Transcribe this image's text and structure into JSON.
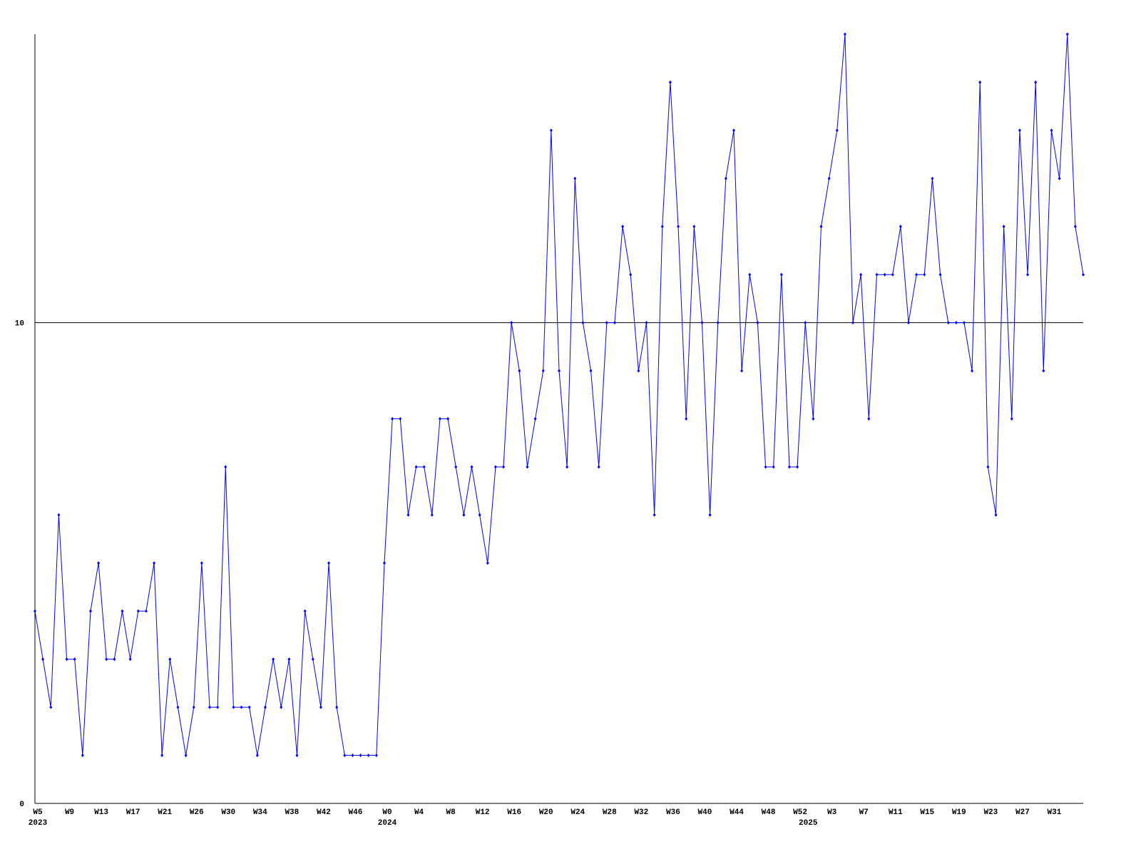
{
  "chart_data": {
    "type": "line",
    "categories": [
      "W5",
      null,
      null,
      null,
      "W9",
      null,
      null,
      null,
      "W13",
      null,
      null,
      null,
      "W17",
      null,
      null,
      null,
      "W21",
      null,
      null,
      null,
      "W26",
      null,
      null,
      null,
      "W30",
      null,
      null,
      null,
      "W34",
      null,
      null,
      null,
      "W38",
      null,
      null,
      null,
      "W42",
      null,
      null,
      null,
      "W46",
      null,
      null,
      null,
      "W0",
      null,
      null,
      null,
      "W4",
      null,
      null,
      null,
      "W8",
      null,
      null,
      null,
      "W12",
      null,
      null,
      null,
      "W16",
      null,
      null,
      null,
      "W20",
      null,
      null,
      null,
      "W24",
      null,
      null,
      null,
      "W28",
      null,
      null,
      null,
      "W32",
      null,
      null,
      null,
      "W36",
      null,
      null,
      null,
      "W40",
      null,
      null,
      null,
      "W44",
      null,
      null,
      null,
      "W48",
      null,
      null,
      null,
      "W52",
      null,
      null,
      null,
      "W3",
      null,
      null,
      null,
      "W7",
      null,
      null,
      null,
      "W11",
      null,
      null,
      null,
      "W15",
      null,
      null,
      null,
      "W19",
      null,
      null,
      null,
      "W23",
      null,
      null,
      null,
      "W27",
      null,
      null,
      null,
      "W31",
      null,
      null,
      null,
      null
    ],
    "years": [
      "2023",
      null,
      null,
      null,
      null,
      null,
      null,
      null,
      null,
      null,
      null,
      null,
      null,
      null,
      null,
      null,
      null,
      null,
      null,
      null,
      null,
      null,
      null,
      null,
      null,
      null,
      null,
      null,
      null,
      null,
      null,
      null,
      null,
      null,
      null,
      null,
      null,
      null,
      null,
      null,
      null,
      null,
      null,
      null,
      "2024",
      null,
      null,
      null,
      null,
      null,
      null,
      null,
      null,
      null,
      null,
      null,
      null,
      null,
      null,
      null,
      null,
      null,
      null,
      null,
      null,
      null,
      null,
      null,
      null,
      null,
      null,
      null,
      null,
      null,
      null,
      null,
      null,
      null,
      null,
      null,
      null,
      null,
      null,
      null,
      null,
      null,
      null,
      null,
      null,
      null,
      null,
      null,
      null,
      null,
      null,
      null,
      null,
      "2025",
      null,
      null,
      null,
      null,
      null,
      null,
      null,
      null,
      null,
      null,
      null,
      null,
      null,
      null,
      null,
      null,
      null,
      null,
      null,
      null,
      null,
      null,
      null,
      null,
      null,
      null,
      null,
      null,
      null,
      null,
      null,
      null,
      null,
      null,
      null
    ],
    "series": [
      {
        "color": "#0000ff",
        "values": [
          4,
          3,
          2,
          6,
          3,
          3,
          1,
          4,
          5,
          3,
          3,
          4,
          3,
          4,
          4,
          5,
          1,
          3,
          2,
          1,
          2,
          5,
          2,
          2,
          7,
          2,
          2,
          2,
          1,
          2,
          3,
          2,
          3,
          1,
          4,
          3,
          2,
          5,
          2,
          1,
          1,
          1,
          1,
          1,
          5,
          8,
          8,
          6,
          7,
          7,
          6,
          8,
          8,
          7,
          6,
          7,
          6,
          5,
          7,
          7,
          10,
          9,
          7,
          8,
          9,
          14,
          9,
          7,
          13,
          10,
          9,
          7,
          10,
          10,
          12,
          11,
          9,
          10,
          6,
          12,
          15,
          12,
          8,
          12,
          10,
          6,
          10,
          13,
          14,
          9,
          11,
          10,
          7,
          7,
          11,
          7,
          7,
          10,
          8,
          12,
          13,
          14,
          16,
          10,
          11,
          8,
          11,
          11,
          11,
          12,
          10,
          11,
          11,
          13,
          11,
          10,
          10,
          10,
          9,
          15,
          7,
          6,
          12,
          8,
          14,
          11,
          15,
          9,
          14,
          13,
          16,
          12,
          11
        ]
      }
    ],
    "ylim": [
      0,
      16
    ],
    "yticks": [
      0,
      10
    ],
    "grid": true
  }
}
